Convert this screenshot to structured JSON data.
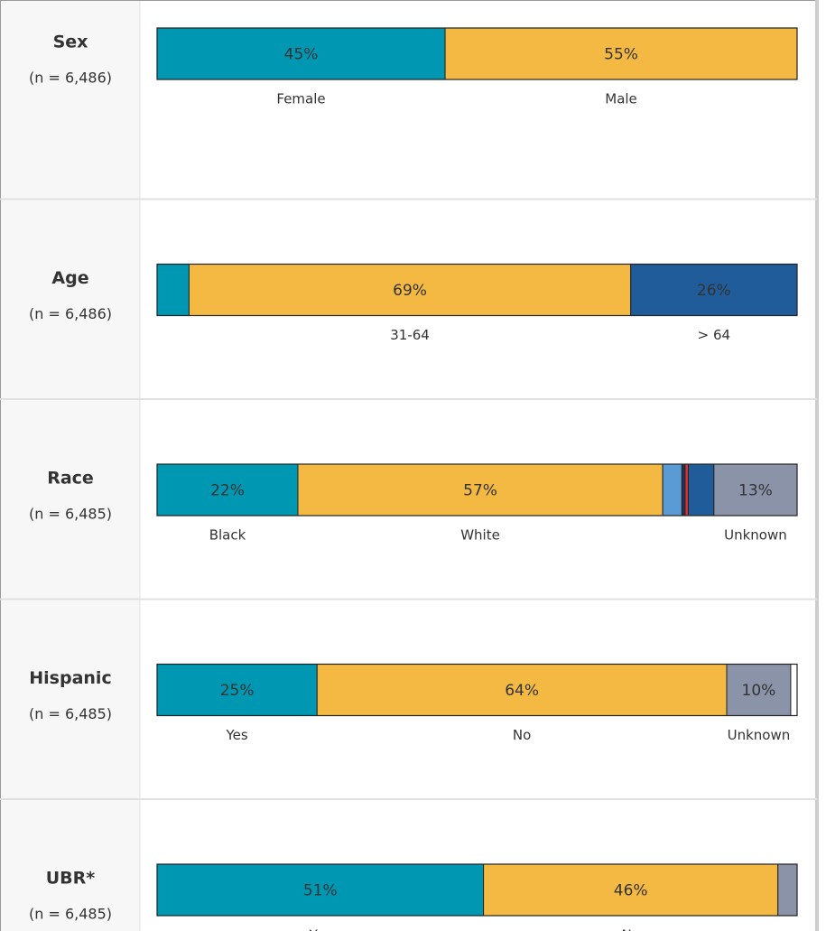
{
  "chart_data": [
    {
      "type": "stacked_bar",
      "title": "Sex",
      "subtitle": "(n = 6,486)",
      "categories": [
        "Female",
        "Male"
      ],
      "values": [
        45,
        55
      ],
      "value_labels": [
        "45%",
        "55%"
      ],
      "colors": [
        "#0097b2",
        "#f3b943"
      ],
      "xlim": [
        0,
        100
      ]
    },
    {
      "type": "stacked_bar",
      "title": "Age",
      "subtitle": "(n = 6,486)",
      "categories": [
        null,
        "31-64",
        "> 64"
      ],
      "values": [
        5,
        69,
        26
      ],
      "value_labels": [
        null,
        "69%",
        "26%"
      ],
      "colors": [
        "#0097b2",
        "#f3b943",
        "#1f5c99"
      ],
      "xlim": [
        0,
        100
      ]
    },
    {
      "type": "stacked_bar",
      "title": "Race",
      "subtitle": "(n = 6,485)",
      "categories": [
        "Black",
        "White",
        null,
        null,
        null,
        null,
        "Unknown"
      ],
      "values": [
        22,
        57,
        3,
        0.5,
        0.5,
        4,
        13
      ],
      "value_labels": [
        "22%",
        "57%",
        null,
        null,
        null,
        null,
        "13%"
      ],
      "colors": [
        "#0097b2",
        "#f3b943",
        "#5b9bd5",
        "#22335a",
        "#e03030",
        "#1f5c99",
        "#8a93a8"
      ],
      "xlim": [
        0,
        100
      ]
    },
    {
      "type": "stacked_bar",
      "title": "Hispanic",
      "subtitle": "(n = 6,485)",
      "categories": [
        "Yes",
        "No",
        "Unknown"
      ],
      "values": [
        25,
        64,
        10
      ],
      "value_labels": [
        "25%",
        "64%",
        "10%"
      ],
      "colors": [
        "#0097b2",
        "#f3b943",
        "#8a93a8"
      ],
      "xlim": [
        0,
        100
      ]
    },
    {
      "type": "stacked_bar",
      "title": "UBR*",
      "subtitle": "(n = 6,485)",
      "categories": [
        "Yes",
        "No",
        null
      ],
      "values": [
        51,
        46,
        3
      ],
      "value_labels": [
        "51%",
        "46%",
        null
      ],
      "colors": [
        "#0097b2",
        "#f3b943",
        "#8a93a8"
      ],
      "xlim": [
        0,
        100
      ]
    }
  ]
}
